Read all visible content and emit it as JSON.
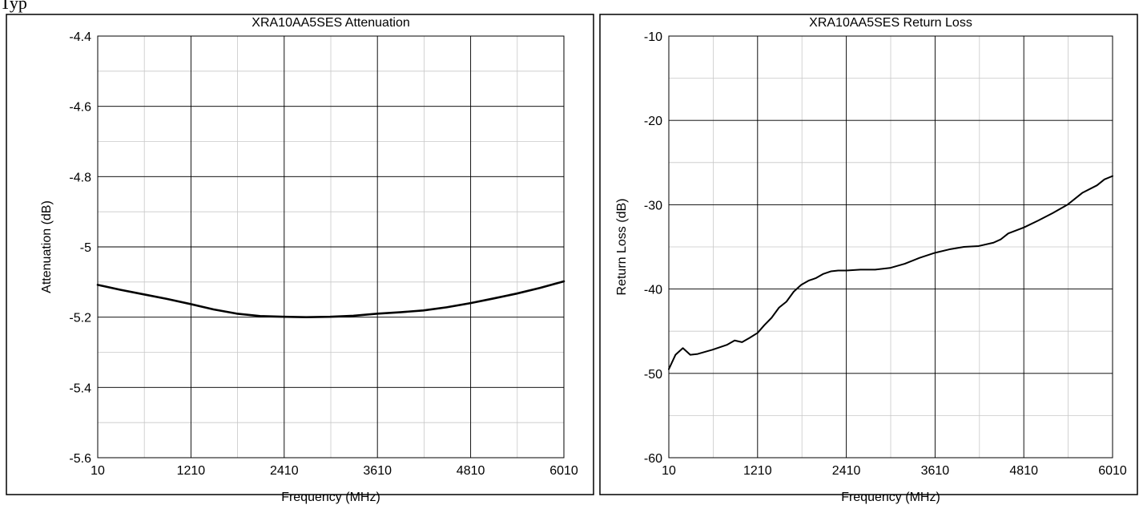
{
  "header_text": "Typ",
  "chart_data": [
    {
      "type": "line",
      "title": "XRA10AA5SES Attenuation",
      "xlabel": "Frequency (MHz)",
      "ylabel": "Attenuation (dB)",
      "xlim": [
        10,
        6010
      ],
      "ylim": [
        -5.6,
        -4.4
      ],
      "x_ticks": [
        10,
        1210,
        2410,
        3610,
        4810,
        6010
      ],
      "y_ticks": [
        -5.6,
        -5.4,
        -5.2,
        -5,
        -4.8,
        -4.6,
        -4.4
      ],
      "x_tick_labels": [
        "10",
        "1210",
        "2410",
        "3610",
        "4810",
        "6010"
      ],
      "y_tick_labels": [
        "-5.6",
        "-5.4",
        "-5.2",
        "-5",
        "-4.8",
        "-4.6",
        "-4.4"
      ],
      "x_minor_step": 600,
      "y_minor_step": 0.1,
      "grid": true,
      "line_color": "#000000",
      "series": [
        {
          "x": [
            10,
            300,
            600,
            900,
            1210,
            1500,
            1800,
            2100,
            2410,
            2700,
            3000,
            3300,
            3610,
            3900,
            4200,
            4500,
            4810,
            5100,
            5400,
            5700,
            6010
          ],
          "values": [
            -5.108,
            -5.122,
            -5.135,
            -5.148,
            -5.163,
            -5.178,
            -5.19,
            -5.197,
            -5.199,
            -5.2,
            -5.199,
            -5.196,
            -5.19,
            -5.186,
            -5.181,
            -5.172,
            -5.16,
            -5.147,
            -5.133,
            -5.117,
            -5.098
          ]
        }
      ]
    },
    {
      "type": "line",
      "title": "XRA10AA5SES Return Loss",
      "xlabel": "Frequency (MHz)",
      "ylabel": "Return Loss (dB)",
      "xlim": [
        10,
        6010
      ],
      "ylim": [
        -60,
        -10
      ],
      "x_ticks": [
        10,
        1210,
        2410,
        3610,
        4810,
        6010
      ],
      "y_ticks": [
        -60,
        -50,
        -40,
        -30,
        -20,
        -10
      ],
      "x_tick_labels": [
        "10",
        "1210",
        "2410",
        "3610",
        "4810",
        "6010"
      ],
      "y_tick_labels": [
        "-60",
        "-50",
        "-40",
        "-30",
        "-20",
        "-10"
      ],
      "x_minor_step": 600,
      "y_minor_step": 5,
      "grid": true,
      "line_color": "#000000",
      "series": [
        {
          "x": [
            10,
            100,
            200,
            300,
            400,
            600,
            800,
            900,
            1000,
            1100,
            1210,
            1300,
            1400,
            1500,
            1600,
            1700,
            1800,
            1900,
            2000,
            2100,
            2200,
            2300,
            2410,
            2600,
            2800,
            3000,
            3200,
            3400,
            3610,
            3800,
            4000,
            4200,
            4400,
            4500,
            4600,
            4810,
            5000,
            5200,
            5400,
            5600,
            5800,
            5900,
            6010
          ],
          "values": [
            -49.5,
            -47.8,
            -47.0,
            -47.8,
            -47.7,
            -47.2,
            -46.6,
            -46.1,
            -46.3,
            -45.8,
            -45.2,
            -44.3,
            -43.4,
            -42.2,
            -41.5,
            -40.3,
            -39.5,
            -39.0,
            -38.7,
            -38.2,
            -37.9,
            -37.8,
            -37.8,
            -37.7,
            -37.7,
            -37.5,
            -37.0,
            -36.3,
            -35.7,
            -35.3,
            -35.0,
            -34.9,
            -34.5,
            -34.1,
            -33.4,
            -32.7,
            -31.9,
            -31.0,
            -30.0,
            -28.6,
            -27.7,
            -27.0,
            -26.6
          ]
        }
      ]
    }
  ]
}
